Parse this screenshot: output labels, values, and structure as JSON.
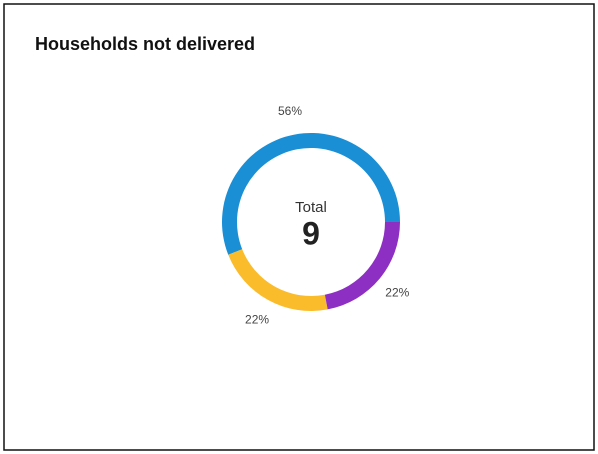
{
  "chart_data": {
    "type": "donut",
    "title": "Households not delivered",
    "categories": [
      null,
      null,
      null
    ],
    "values": [
      56,
      22,
      22
    ],
    "value_labels": [
      "56%",
      "22%",
      "22%"
    ],
    "colors": [
      "#1a8fd6",
      "#fbbc2c",
      "#8e2fc4"
    ],
    "center_label": "Total",
    "center_value": 9
  }
}
